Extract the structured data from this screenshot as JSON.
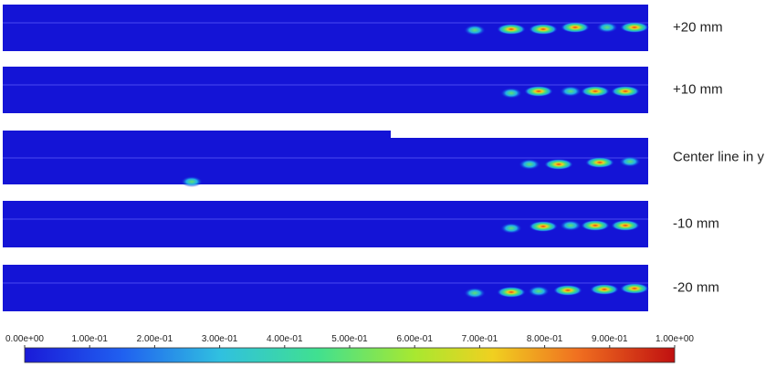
{
  "panels": [
    {
      "label": "+20 mm"
    },
    {
      "label": "+10 mm"
    },
    {
      "label": "Center line in y"
    },
    {
      "label": "-10 mm"
    },
    {
      "label": "-20 mm"
    }
  ],
  "colorbar": {
    "range": [
      0,
      1
    ],
    "ticks": [
      {
        "value": 0,
        "label": "0.00e+00"
      },
      {
        "value": 0.1,
        "label": "1.00e-01"
      },
      {
        "value": 0.2,
        "label": "2.00e-01"
      },
      {
        "value": 0.3,
        "label": "3.00e-01"
      },
      {
        "value": 0.4,
        "label": "4.00e-01"
      },
      {
        "value": 0.5,
        "label": "5.00e-01"
      },
      {
        "value": 0.6,
        "label": "6.00e-01"
      },
      {
        "value": 0.7,
        "label": "7.00e-01"
      },
      {
        "value": 0.8,
        "label": "8.00e-01"
      },
      {
        "value": 0.9,
        "label": "9.00e-01"
      },
      {
        "value": 1,
        "label": "1.00e+00"
      }
    ]
  }
}
